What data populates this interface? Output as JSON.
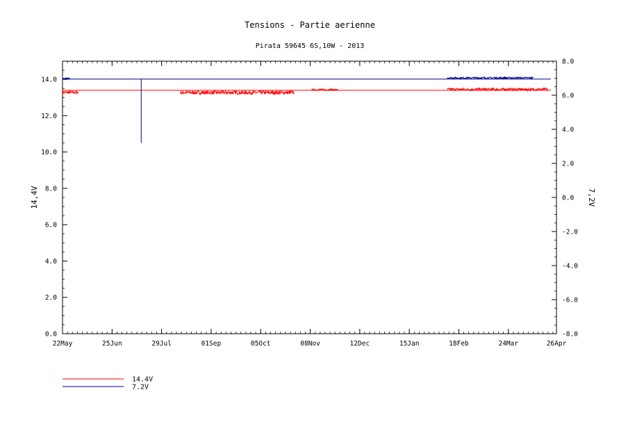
{
  "chart_data": {
    "type": "line",
    "title": "Tensions - Partie aerienne",
    "subtitle": "Pirata 59645 6S,10W - 2013",
    "xlabel": "",
    "ylabel_left": "14,4V",
    "ylabel_right": "7,2V",
    "x_ticks": [
      "22May",
      "25Jun",
      "29Jul",
      "01Sep",
      "05Oct",
      "08Nov",
      "12Dec",
      "15Jan",
      "18Feb",
      "24Mar",
      "26Apr"
    ],
    "x_tick_days": [
      0,
      34,
      68,
      102,
      136,
      170,
      204,
      238,
      272,
      306,
      339
    ],
    "x_range_days": [
      0,
      339
    ],
    "ylim_left": [
      0,
      15
    ],
    "yticks_left": [
      "0.0",
      "2.0",
      "4.0",
      "6.0",
      "8.0",
      "10.0",
      "12.0",
      "14.0"
    ],
    "ylim_right": [
      -8,
      8
    ],
    "yticks_right": [
      "-8.0",
      "-6.0",
      "-4.0",
      "-2.0",
      "0.0",
      "2.0",
      "4.0",
      "6.0",
      "8.0"
    ],
    "grid": false,
    "legend_position": "bottom-left",
    "series": [
      {
        "name": "14.4V",
        "axis": "left",
        "color": "#ff0000",
        "constant": 13.4,
        "segments": [
          {
            "start": 0,
            "end": 11,
            "mean": 13.28,
            "spread": 0.08
          },
          {
            "start": 81,
            "end": 159,
            "mean": 13.27,
            "spread": 0.1
          },
          {
            "start": 171,
            "end": 189,
            "mean": 13.43,
            "spread": 0.05
          },
          {
            "start": 264,
            "end": 333,
            "mean": 13.45,
            "spread": 0.07
          }
        ]
      },
      {
        "name": "7.2V",
        "axis": "right",
        "color": "#00008b",
        "constant": 6.95,
        "segments": [
          {
            "start": 0,
            "end": 5,
            "mean": 6.98,
            "spread": 0.04
          },
          {
            "start": 264,
            "end": 323,
            "mean": 7.02,
            "spread": 0.05
          }
        ],
        "dips": [
          {
            "x": 54,
            "low": 3.2,
            "high": 6.95
          }
        ]
      }
    ]
  }
}
